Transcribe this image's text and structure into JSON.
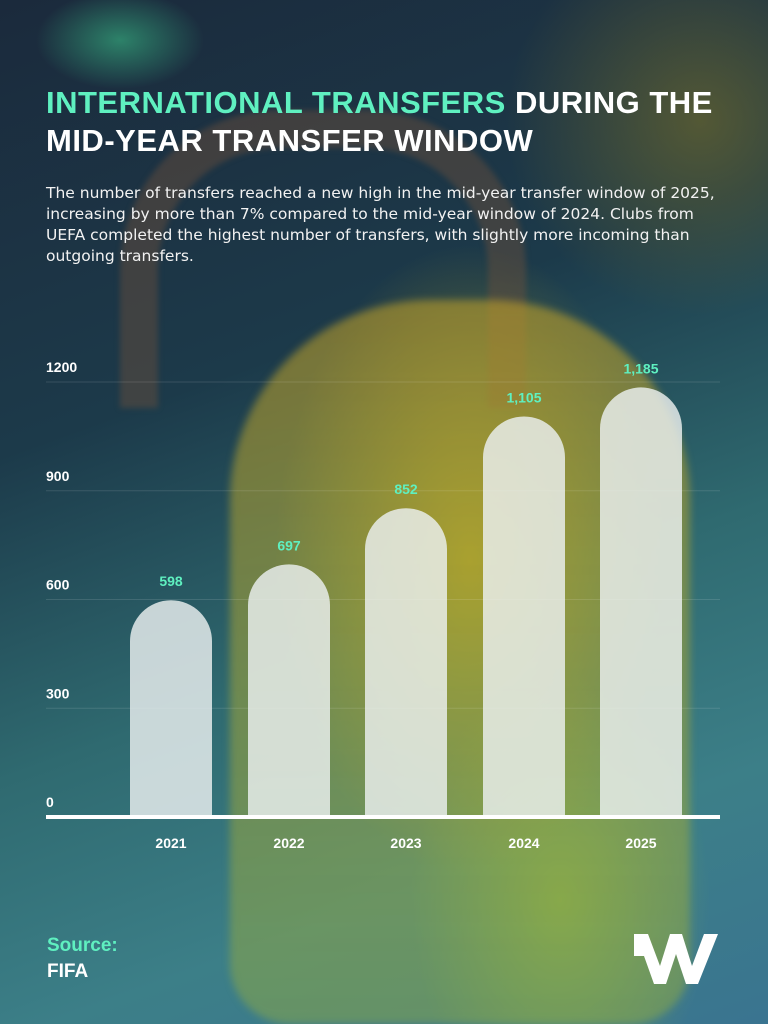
{
  "title": {
    "highlight": "INTERNATIONAL TRANSFERS",
    "rest": " DURING THE MID-YEAR TRANSFER WINDOW"
  },
  "description": "The number of transfers reached a new high in the mid-year transfer window of 2025, increasing by more than 7% compared to the mid-year window of 2024. Clubs from UEFA completed the highest number of transfers, with slightly more incoming than outgoing transfers.",
  "source": {
    "label": "Source:",
    "value": "FIFA"
  },
  "colors": {
    "accent": "#5ff0c0",
    "bar": "#e6ecec"
  },
  "chart_data": {
    "type": "bar",
    "title": "International transfers during the mid-year transfer window",
    "categories": [
      "2021",
      "2022",
      "2023",
      "2024",
      "2025"
    ],
    "values": [
      598,
      697,
      852,
      1105,
      1185
    ],
    "value_labels": [
      "598",
      "697",
      "852",
      "1,105",
      "1,185"
    ],
    "yticks": [
      "0",
      "300",
      "600",
      "900",
      "1200"
    ],
    "ylim": [
      0,
      1200
    ],
    "xlabel": "",
    "ylabel": ""
  }
}
